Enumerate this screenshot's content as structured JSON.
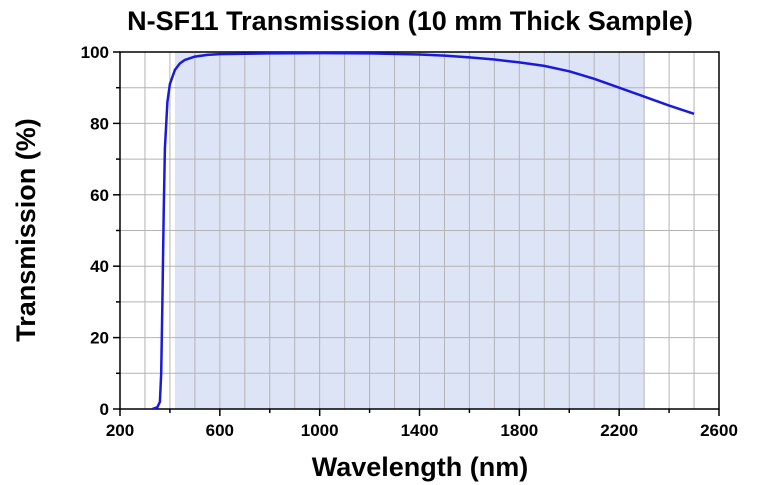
{
  "chart_data": {
    "type": "line",
    "title": "N-SF11 Transmission (10 mm Thick Sample)",
    "xlabel": "Wavelength (nm)",
    "ylabel": "Transmission (%)",
    "xlim": [
      200,
      2600
    ],
    "ylim": [
      0,
      100
    ],
    "xticks": [
      "200",
      "600",
      "1000",
      "1400",
      "1800",
      "2200",
      "2600"
    ],
    "yticks": [
      "0",
      "20",
      "40",
      "60",
      "80",
      "100"
    ],
    "grid": true,
    "shaded_region": [
      420,
      2300
    ],
    "colors": {
      "line": "#1a1adc",
      "shade": "#dce4f6",
      "grid": "#b4b4b4",
      "axis": "#000000"
    },
    "series": [
      {
        "x": [
          330,
          350,
          360,
          365,
          370,
          375,
          380,
          390,
          400,
          420,
          440,
          460,
          500,
          550,
          600,
          700,
          800,
          1000,
          1200,
          1400,
          1500,
          1600,
          1700,
          1800,
          1900,
          2000,
          2100,
          2200,
          2300,
          2400,
          2500
        ],
        "y": [
          0,
          0.5,
          2,
          10,
          30,
          55,
          73,
          86,
          91,
          95,
          96.8,
          97.8,
          98.7,
          99.2,
          99.4,
          99.5,
          99.6,
          99.7,
          99.6,
          99.3,
          99,
          98.5,
          97.9,
          97.1,
          96.1,
          94.6,
          92.5,
          90,
          87.5,
          85,
          82.7
        ]
      }
    ]
  }
}
